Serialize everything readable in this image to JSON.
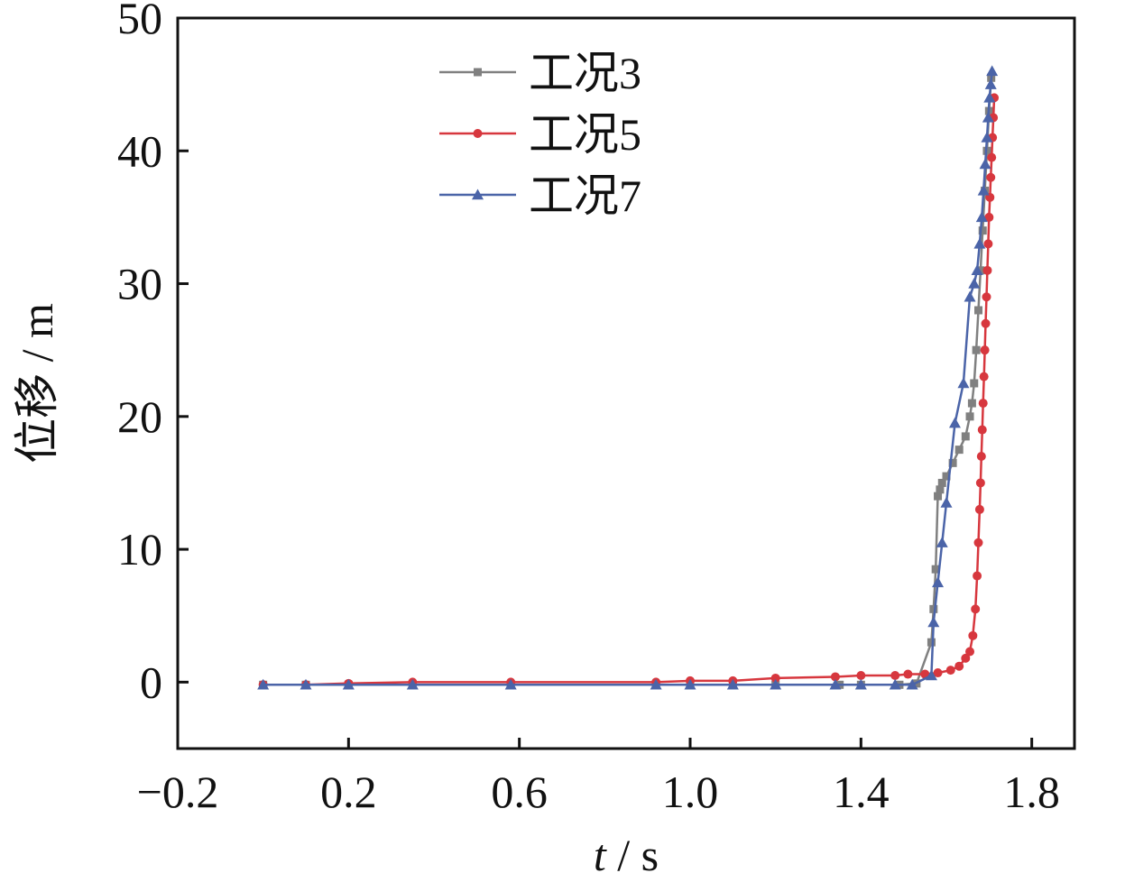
{
  "chart_data": {
    "type": "line",
    "xlabel_var": "t",
    "xlabel_unit": " / s",
    "ylabel": "位移 / m",
    "xlim": [
      -0.2,
      1.9
    ],
    "ylim": [
      -5,
      50
    ],
    "xticks": [
      -0.2,
      0.2,
      0.6,
      1.0,
      1.4,
      1.8
    ],
    "xtick_labels": [
      "−0.2",
      "0.2",
      "0.6",
      "1.0",
      "1.4",
      "1.8"
    ],
    "yticks": [
      0,
      10,
      20,
      30,
      40,
      50
    ],
    "ytick_labels": [
      "0",
      "10",
      "20",
      "30",
      "40",
      "50"
    ],
    "legend_position": "top-center",
    "series": [
      {
        "name": "工况3",
        "color": "#808080",
        "marker": "square",
        "x": [
          0.0,
          0.1,
          0.2,
          0.35,
          0.58,
          0.92,
          1.0,
          1.1,
          1.2,
          1.35,
          1.4,
          1.49,
          1.53,
          1.565,
          1.57,
          1.575,
          1.58,
          1.585,
          1.59,
          1.6,
          1.615,
          1.63,
          1.645,
          1.655,
          1.66,
          1.665,
          1.67,
          1.675,
          1.68,
          1.685,
          1.69,
          1.695,
          1.7,
          1.705
        ],
        "y": [
          -0.2,
          -0.2,
          -0.2,
          -0.2,
          -0.2,
          -0.2,
          -0.2,
          -0.2,
          -0.2,
          -0.2,
          -0.2,
          -0.2,
          -0.1,
          3.0,
          5.5,
          8.5,
          14.0,
          14.5,
          15.0,
          15.5,
          16.5,
          17.5,
          18.5,
          20.0,
          21.0,
          22.5,
          25.0,
          28.0,
          31.0,
          34.0,
          37.0,
          40.0,
          43.0,
          45.5
        ]
      },
      {
        "name": "工况5",
        "color": "#d7373e",
        "marker": "circle",
        "x": [
          0.0,
          0.1,
          0.2,
          0.35,
          0.58,
          0.92,
          1.0,
          1.1,
          1.2,
          1.34,
          1.4,
          1.48,
          1.51,
          1.55,
          1.58,
          1.61,
          1.63,
          1.645,
          1.655,
          1.662,
          1.668,
          1.672,
          1.675,
          1.678,
          1.68,
          1.682,
          1.684,
          1.686,
          1.688,
          1.69,
          1.692,
          1.694,
          1.696,
          1.698,
          1.7,
          1.702,
          1.704,
          1.706,
          1.708,
          1.71,
          1.712
        ],
        "y": [
          -0.2,
          -0.2,
          -0.1,
          0.0,
          0.0,
          0.0,
          0.1,
          0.1,
          0.3,
          0.4,
          0.5,
          0.5,
          0.6,
          0.6,
          0.7,
          0.9,
          1.2,
          1.8,
          2.3,
          3.5,
          5.5,
          8.0,
          10.5,
          13.0,
          15.0,
          17.0,
          19.0,
          21.0,
          23.0,
          25.0,
          27.0,
          29.0,
          31.0,
          33.0,
          35.0,
          36.5,
          38.0,
          39.5,
          41.0,
          42.5,
          44.0
        ]
      },
      {
        "name": "工况7",
        "color": "#4b64a8",
        "marker": "triangle",
        "x": [
          0.0,
          0.1,
          0.2,
          0.35,
          0.58,
          0.92,
          1.0,
          1.1,
          1.2,
          1.34,
          1.4,
          1.48,
          1.52,
          1.565,
          1.57,
          1.58,
          1.59,
          1.6,
          1.62,
          1.64,
          1.655,
          1.665,
          1.672,
          1.678,
          1.683,
          1.687,
          1.691,
          1.695,
          1.698,
          1.701,
          1.704,
          1.707
        ],
        "y": [
          -0.2,
          -0.2,
          -0.2,
          -0.2,
          -0.2,
          -0.2,
          -0.2,
          -0.2,
          -0.2,
          -0.2,
          -0.2,
          -0.2,
          -0.2,
          0.5,
          4.5,
          7.5,
          10.5,
          13.5,
          19.5,
          22.5,
          29.0,
          30.0,
          31.0,
          33.0,
          35.0,
          37.0,
          39.0,
          41.0,
          42.5,
          44.0,
          45.0,
          46.0
        ]
      }
    ]
  }
}
